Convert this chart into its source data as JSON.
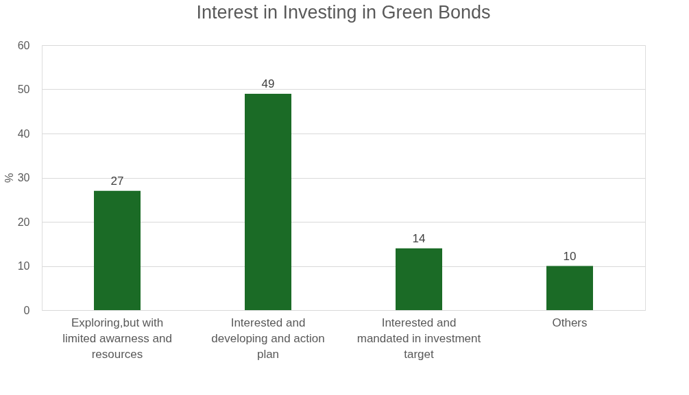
{
  "chart_data": {
    "type": "bar",
    "title": "Interest in Investing in Green Bonds",
    "ylabel": "%",
    "categories": [
      "Exploring,but with limited awarness and resources",
      "Interested and developing and action plan",
      "Interested and mandated in investment target",
      "Others"
    ],
    "values": [
      27,
      49,
      14,
      10
    ],
    "color": "#1b6b26",
    "ylim": [
      0,
      60
    ],
    "yticks": [
      0,
      10,
      20,
      30,
      40,
      50,
      60
    ],
    "grid": "y",
    "data_labels": true
  }
}
